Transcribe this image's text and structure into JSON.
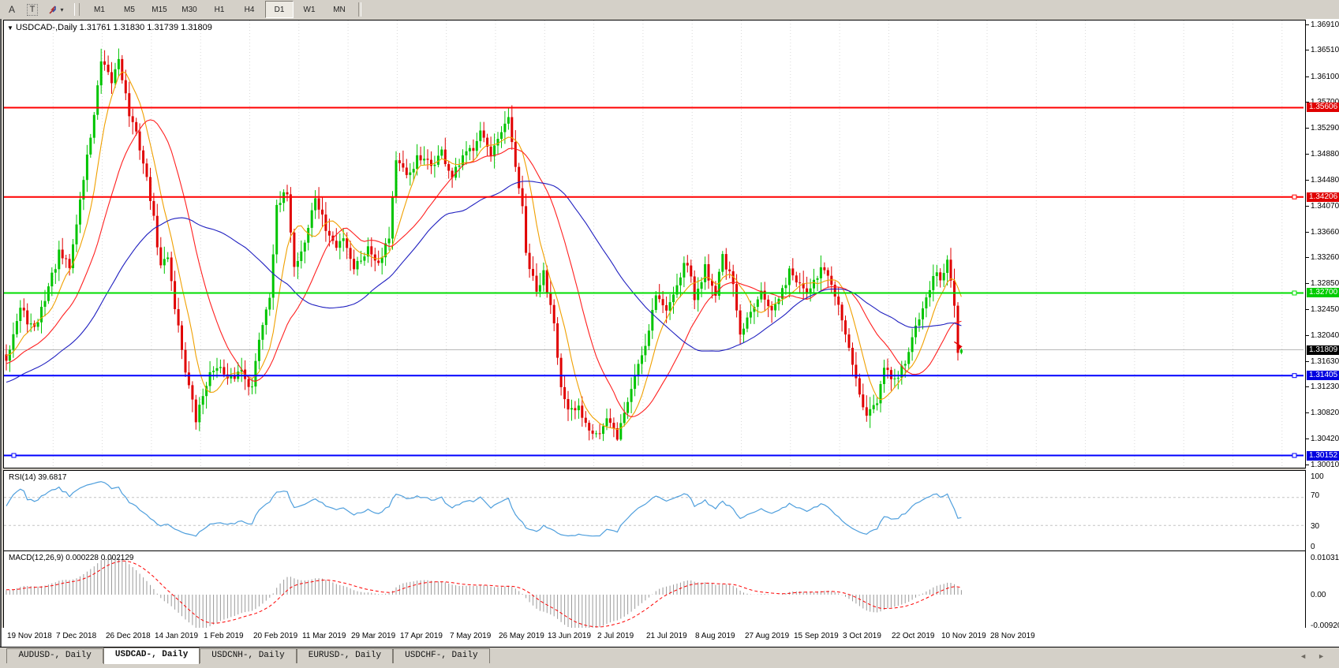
{
  "toolbar": {
    "icons": [
      {
        "name": "font-tool",
        "glyph": "A"
      },
      {
        "name": "text-label-tool",
        "glyph": "T"
      },
      {
        "name": "color-style-tool",
        "dropdown_glyph": "▾"
      }
    ],
    "timeframes": [
      "M1",
      "M5",
      "M15",
      "M30",
      "H1",
      "H4",
      "D1",
      "W1",
      "MN"
    ],
    "active_timeframe": "D1"
  },
  "chart": {
    "dropdown_glyph": "▼",
    "title": "USDCAD-,Daily",
    "ohlc_text": "1.31761 1.31830 1.31739 1.31809",
    "open": "1.31761",
    "high": "1.31830",
    "low": "1.31739",
    "close": "1.31809"
  },
  "price_axis": {
    "labels": [
      "1.36910",
      "1.36510",
      "1.36100",
      "1.35700",
      "1.35290",
      "1.34880",
      "1.34480",
      "1.34070",
      "1.33660",
      "1.33260",
      "1.32850",
      "1.32450",
      "1.32040",
      "1.31630",
      "1.31230",
      "1.30820",
      "1.30420",
      "1.30010"
    ]
  },
  "levels": [
    {
      "value": "1.35606",
      "price": 1.35606,
      "line_color": "#ff0000",
      "badge_bg": "#e00000",
      "handles": []
    },
    {
      "value": "1.34206",
      "price": 1.34206,
      "line_color": "#ff0000",
      "badge_bg": "#e00000",
      "handles": [
        "right"
      ]
    },
    {
      "value": "1.32700",
      "price": 1.327,
      "line_color": "#00dd00",
      "badge_bg": "#00cc00",
      "handles": [
        "right"
      ]
    },
    {
      "value": "1.31405",
      "price": 1.31405,
      "line_color": "#0000ff",
      "badge_bg": "#0000e0",
      "handles": [
        "right"
      ]
    },
    {
      "value": "1.30152",
      "price": 1.30152,
      "line_color": "#0000ff",
      "badge_bg": "#0000e0",
      "handles": [
        "left",
        "right"
      ]
    }
  ],
  "current_price": {
    "value": "1.31809",
    "price": 1.31809,
    "badge_bg": "#000000"
  },
  "rsi": {
    "label": "RSI(14) 39.6817",
    "scale": [
      "100",
      "70",
      "30",
      "0"
    ]
  },
  "macd": {
    "label": "MACD(12,26,9) 0.000228 0.002129",
    "scale": [
      "0.010311",
      "0.00",
      "-0.009203"
    ]
  },
  "dates": [
    "19 Nov 2018",
    "7 Dec 2018",
    "26 Dec 2018",
    "14 Jan 2019",
    "1 Feb 2019",
    "20 Feb 2019",
    "11 Mar 2019",
    "29 Mar 2019",
    "17 Apr 2019",
    "7 May 2019",
    "26 May 2019",
    "13 Jun 2019",
    "2 Jul 2019",
    "21 Jul 2019",
    "8 Aug 2019",
    "27 Aug 2019",
    "15 Sep 2019",
    "3 Oct 2019",
    "22 Oct 2019",
    "10 Nov 2019",
    "28 Nov 2019"
  ],
  "tabs": [
    {
      "label": "AUDUSD-, Daily",
      "active": false
    },
    {
      "label": "USDCAD-, Daily",
      "active": true
    },
    {
      "label": "USDCNH-, Daily",
      "active": false
    },
    {
      "label": "EURUSD-, Daily",
      "active": false
    },
    {
      "label": "USDCHF-, Daily",
      "active": false
    }
  ],
  "tab_scroller": {
    "left_glyph": "◄",
    "right_glyph": "►"
  },
  "chart_data": {
    "type": "candlestick",
    "symbol": "USDCAD",
    "timeframe": "Daily",
    "title": "USDCAD-,Daily",
    "last_bar": {
      "open": 1.31761,
      "high": 1.3183,
      "low": 1.31739,
      "close": 1.31809
    },
    "bars_rendered": 273,
    "y_axis": {
      "min": 1.3001,
      "max": 1.3691,
      "ticks": [
        1.3691,
        1.3651,
        1.361,
        1.357,
        1.3529,
        1.3488,
        1.3448,
        1.3407,
        1.3366,
        1.3326,
        1.3285,
        1.3245,
        1.3204,
        1.3163,
        1.3123,
        1.3082,
        1.3042,
        1.3001
      ]
    },
    "x_dates": [
      "19 Nov 2018",
      "7 Dec 2018",
      "26 Dec 2018",
      "14 Jan 2019",
      "1 Feb 2019",
      "20 Feb 2019",
      "11 Mar 2019",
      "29 Mar 2019",
      "17 Apr 2019",
      "7 May 2019",
      "26 May 2019",
      "13 Jun 2019",
      "2 Jul 2019",
      "21 Jul 2019",
      "8 Aug 2019",
      "27 Aug 2019",
      "15 Sep 2019",
      "3 Oct 2019",
      "22 Oct 2019",
      "10 Nov 2019",
      "28 Nov 2019"
    ],
    "horizontal_levels": [
      {
        "price": 1.35606,
        "color": "#ff0000"
      },
      {
        "price": 1.34206,
        "color": "#ff0000"
      },
      {
        "price": 1.327,
        "color": "#00dd00"
      },
      {
        "price": 1.31405,
        "color": "#0000ff"
      },
      {
        "price": 1.30152,
        "color": "#0000ff"
      }
    ],
    "current_price": 1.31809,
    "indicators": {
      "rsi": {
        "period": 14,
        "current": 39.6817,
        "overbought": 70,
        "oversold": 30,
        "color": "#4f9fdd"
      },
      "macd": {
        "fast": 12,
        "slow": 26,
        "signal": 9,
        "current_macd": 0.000228,
        "current_signal": 0.002129,
        "axis_max": 0.010311,
        "axis_min": -0.009203,
        "histogram_color": "#9a9a9a",
        "signal_color": "#ff0000"
      },
      "moving_averages": [
        {
          "period": 8,
          "color": "#f0a000"
        },
        {
          "period": 21,
          "color": "#ff2020"
        },
        {
          "period": 50,
          "color": "#2020c0"
        }
      ]
    },
    "candle_colors": {
      "up": "#00c400",
      "down": "#e00000"
    },
    "price_waypoints": [
      [
        0,
        1.317
      ],
      [
        4,
        1.3245
      ],
      [
        8,
        1.321
      ],
      [
        12,
        1.328
      ],
      [
        15,
        1.333
      ],
      [
        18,
        1.331
      ],
      [
        22,
        1.345
      ],
      [
        25,
        1.355
      ],
      [
        27,
        1.363
      ],
      [
        30,
        1.36
      ],
      [
        32,
        1.364
      ],
      [
        35,
        1.355
      ],
      [
        38,
        1.35
      ],
      [
        41,
        1.342
      ],
      [
        44,
        1.331
      ],
      [
        46,
        1.333
      ],
      [
        48,
        1.325
      ],
      [
        51,
        1.315
      ],
      [
        54,
        1.307
      ],
      [
        57,
        1.313
      ],
      [
        60,
        1.316
      ],
      [
        63,
        1.313
      ],
      [
        67,
        1.315
      ],
      [
        70,
        1.312
      ],
      [
        72,
        1.32
      ],
      [
        75,
        1.327
      ],
      [
        77,
        1.34
      ],
      [
        80,
        1.343
      ],
      [
        82,
        1.331
      ],
      [
        85,
        1.335
      ],
      [
        88,
        1.342
      ],
      [
        91,
        1.337
      ],
      [
        94,
        1.334
      ],
      [
        96,
        1.336
      ],
      [
        99,
        1.331
      ],
      [
        103,
        1.334
      ],
      [
        106,
        1.332
      ],
      [
        109,
        1.336
      ],
      [
        111,
        1.348
      ],
      [
        114,
        1.345
      ],
      [
        117,
        1.348
      ],
      [
        121,
        1.347
      ],
      [
        124,
        1.349
      ],
      [
        127,
        1.345
      ],
      [
        130,
        1.348
      ],
      [
        133,
        1.35
      ],
      [
        135,
        1.353
      ],
      [
        138,
        1.348
      ],
      [
        141,
        1.352
      ],
      [
        143,
        1.354
      ],
      [
        145,
        1.347
      ],
      [
        147,
        1.34
      ],
      [
        148,
        1.333
      ],
      [
        151,
        1.327
      ],
      [
        153,
        1.33
      ],
      [
        156,
        1.323
      ],
      [
        158,
        1.312
      ],
      [
        160,
        1.308
      ],
      [
        163,
        1.309
      ],
      [
        166,
        1.306
      ],
      [
        169,
        1.305
      ],
      [
        171,
        1.307
      ],
      [
        174,
        1.3045
      ],
      [
        177,
        1.31
      ],
      [
        180,
        1.316
      ],
      [
        182,
        1.319
      ],
      [
        185,
        1.327
      ],
      [
        188,
        1.324
      ],
      [
        191,
        1.329
      ],
      [
        194,
        1.332
      ],
      [
        196,
        1.326
      ],
      [
        199,
        1.331
      ],
      [
        202,
        1.327
      ],
      [
        204,
        1.333
      ],
      [
        207,
        1.328
      ],
      [
        209,
        1.32
      ],
      [
        212,
        1.324
      ],
      [
        215,
        1.328
      ],
      [
        218,
        1.324
      ],
      [
        221,
        1.327
      ],
      [
        223,
        1.331
      ],
      [
        226,
        1.328
      ],
      [
        229,
        1.327
      ],
      [
        232,
        1.331
      ],
      [
        235,
        1.328
      ],
      [
        238,
        1.323
      ],
      [
        240,
        1.318
      ],
      [
        243,
        1.311
      ],
      [
        245,
        1.307
      ],
      [
        248,
        1.31
      ],
      [
        250,
        1.315
      ],
      [
        253,
        1.313
      ],
      [
        256,
        1.316
      ],
      [
        258,
        1.32
      ],
      [
        261,
        1.324
      ],
      [
        264,
        1.33
      ],
      [
        266,
        1.329
      ],
      [
        268,
        1.332
      ],
      [
        270,
        1.325
      ],
      [
        271,
        1.3176
      ],
      [
        272,
        1.31809
      ]
    ]
  }
}
